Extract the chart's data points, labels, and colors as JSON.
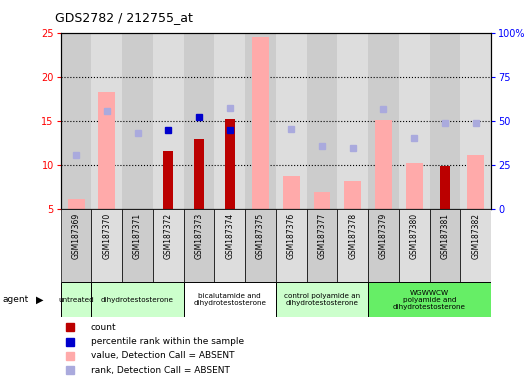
{
  "title": "GDS2782 / 212755_at",
  "samples": [
    "GSM187369",
    "GSM187370",
    "GSM187371",
    "GSM187372",
    "GSM187373",
    "GSM187374",
    "GSM187375",
    "GSM187376",
    "GSM187377",
    "GSM187378",
    "GSM187379",
    "GSM187380",
    "GSM187381",
    "GSM187382"
  ],
  "count_present": [
    null,
    null,
    null,
    11.6,
    13.0,
    15.2,
    null,
    null,
    null,
    null,
    null,
    null,
    9.9,
    null
  ],
  "rank_present": [
    null,
    null,
    null,
    14.0,
    15.5,
    14.0,
    null,
    null,
    null,
    null,
    null,
    null,
    null,
    null
  ],
  "value_absent": [
    6.2,
    18.3,
    null,
    null,
    null,
    null,
    24.5,
    8.8,
    6.9,
    8.2,
    15.1,
    10.2,
    null,
    11.1
  ],
  "rank_absent": [
    11.1,
    16.1,
    13.6,
    null,
    null,
    16.5,
    null,
    14.1,
    12.2,
    11.9,
    16.4,
    13.1,
    14.8,
    14.8
  ],
  "agent_groups": [
    {
      "label": "untreated",
      "start": 0,
      "end": 1,
      "color": "#ccffcc"
    },
    {
      "label": "dihydrotestosterone",
      "start": 1,
      "end": 4,
      "color": "#ccffcc"
    },
    {
      "label": "bicalutamide and\ndihydrotestosterone",
      "start": 4,
      "end": 7,
      "color": "#ffffff"
    },
    {
      "label": "control polyamide an\ndihydrotestosterone",
      "start": 7,
      "end": 10,
      "color": "#ccffcc"
    },
    {
      "label": "WGWWCW\npolyamide and\ndihydrotestosterone",
      "start": 10,
      "end": 14,
      "color": "#66ee66"
    }
  ],
  "ylim_left": [
    5,
    25
  ],
  "ylim_right": [
    0,
    100
  ],
  "left_ticks": [
    5,
    10,
    15,
    20,
    25
  ],
  "right_ticks": [
    0,
    25,
    50,
    75,
    100
  ],
  "right_tick_labels": [
    "0",
    "25",
    "50",
    "75",
    "100%"
  ],
  "count_color": "#bb0000",
  "rank_present_color": "#0000cc",
  "value_absent_color": "#ffaaaa",
  "rank_absent_color": "#aaaadd",
  "col_colors": [
    "#cccccc",
    "#dddddd"
  ],
  "plot_bg": "#cccccc"
}
